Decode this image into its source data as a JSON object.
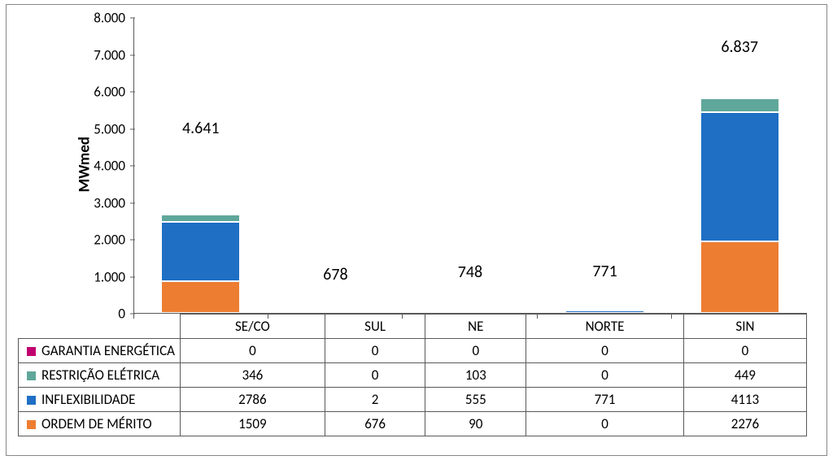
{
  "chart": {
    "type": "stacked-bar",
    "ylabel": "MWmed",
    "ylabel_fontsize": 19,
    "label_fontsize": 17,
    "total_label_fontsize": 20,
    "y_axis": {
      "min": 0,
      "max": 8000,
      "ticks": [
        0,
        1000,
        2000,
        3000,
        4000,
        5000,
        6000,
        7000,
        8000
      ],
      "tick_labels": [
        "0",
        "1.000",
        "2.000",
        "3.000",
        "4.000",
        "5.000",
        "6.000",
        "7.000",
        "8.000"
      ]
    },
    "categories": [
      "SE/CO",
      "SUL",
      "NE",
      "NORTE",
      "SIN"
    ],
    "totals": [
      "4.641",
      "678",
      "748",
      "771",
      "6.837"
    ],
    "series": [
      {
        "name": "GARANTIA ENERGÉTICA",
        "color": "#c0006f",
        "values": [
          0,
          0,
          0,
          0,
          0
        ]
      },
      {
        "name": "RESTRIÇÃO ELÉTRICA",
        "color": "#5fa79a",
        "values": [
          346,
          0,
          103,
          0,
          449
        ]
      },
      {
        "name": "INFLEXIBILIDADE",
        "color": "#1f6fc4",
        "values": [
          2786,
          2,
          555,
          771,
          4113
        ]
      },
      {
        "name": "ORDEM DE MÉRITO",
        "color": "#ed7d31",
        "values": [
          1509,
          676,
          90,
          0,
          2276
        ]
      }
    ],
    "stack_order": [
      "ORDEM DE MÉRITO",
      "INFLEXIBILIDADE",
      "RESTRIÇÃO ELÉTRICA",
      "GARANTIA ENERGÉTICA"
    ],
    "background_color": "#ffffff",
    "border_color": "#888888",
    "grid_color": "#595959"
  }
}
